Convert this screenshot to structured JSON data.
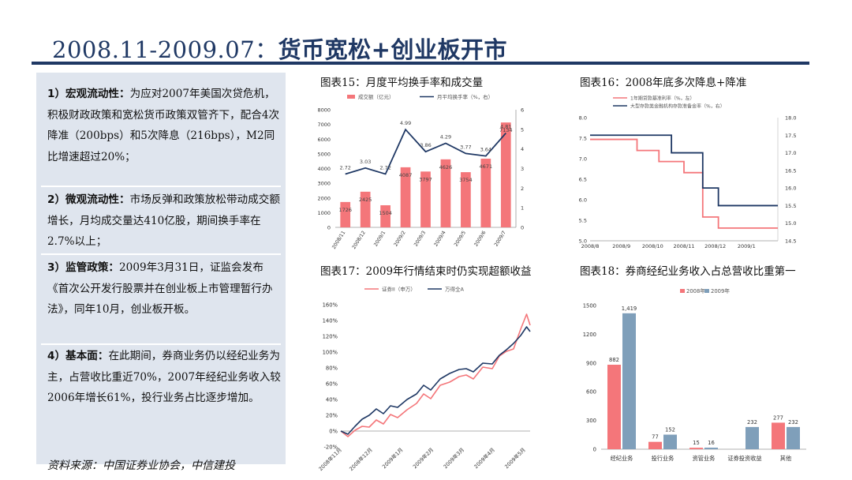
{
  "title": {
    "prefix": "2008.11-2009.07：",
    "suffix": "货币宽松+创业板开市"
  },
  "left": {
    "p1": {
      "head": "1）宏观流动性：",
      "body": "为应对2007年美国次贷危机，积极财政政策和宽松货币政策双管齐下，配合4次降准（200bps）和5次降息（216bps），M2同比增速超过20%；"
    },
    "p2": {
      "head": "2）微观流动性：",
      "body": "市场反弹和政策放松带动成交额增长，月均成交量达410亿股，期间换手率在2.7%以上；"
    },
    "p3": {
      "head": "3）监管政策：",
      "body": "2009年3月31日，证监会发布《首次公开发行股票并在创业板上市管理暂行办法》，同年10月，创业板开板。"
    },
    "p4": {
      "head": "4）基本面：",
      "body": "在此期间，券商业务仍以经纪业务为主，占营收比重近70%，2007年经纪业务收入较2006年增长61%，投行业务占比逐步增加。"
    }
  },
  "source": "资料来源：中国证券业协会，中信建投",
  "chart_data": [
    {
      "type": "bar",
      "title": "图表15：月度平均换手率和成交量",
      "categories": [
        "2008/11",
        "2008/12",
        "2009/1",
        "2009/2",
        "2009/3",
        "2009/4",
        "2009/5",
        "2009/6",
        "2009/7"
      ],
      "series": [
        {
          "name": "成交额（亿元）",
          "type": "bar",
          "axis": "left",
          "color": "#f4767a",
          "values": [
            1726,
            2425,
            1504,
            4087,
            3797,
            4626,
            3754,
            4671,
            7134
          ],
          "labels": [
            "1726",
            "2425",
            "1504",
            "4087",
            "3797",
            "4626",
            "3754",
            "4671",
            "7134"
          ]
        },
        {
          "name": "月平均换手率（%，右）",
          "type": "line",
          "axis": "right",
          "color": "#1f3864",
          "values": [
            2.72,
            3.03,
            2.72,
            4.99,
            3.86,
            4.29,
            3.77,
            3.64,
            4.81
          ],
          "labels": [
            "2.72",
            "3.03",
            "2.72",
            "4.99",
            "3.86",
            "4.29",
            "3.77",
            "3.64",
            "4.81"
          ]
        }
      ],
      "left_ticks": [
        "0",
        "1000",
        "2000",
        "3000",
        "4000",
        "5000",
        "6000",
        "7000",
        "8000"
      ],
      "right_ticks": [
        "0",
        "1",
        "2",
        "3",
        "4",
        "5",
        "6"
      ],
      "ylim": [
        0,
        8000
      ],
      "y2lim": [
        0,
        6
      ]
    },
    {
      "type": "line",
      "title": "图表16：2008年底多次降息+降准",
      "x_ticks": [
        "2008/8",
        "2008/9",
        "2008/10",
        "2008/11",
        "2008/12",
        "2009/1"
      ],
      "xlim": [
        0,
        6
      ],
      "series": [
        {
          "name": "1年期贷款基准利率（%，左）",
          "axis": "left",
          "color": "#f4767a",
          "points": [
            [
              0,
              7.47
            ],
            [
              1.5,
              7.47
            ],
            [
              1.5,
              7.2
            ],
            [
              2.2,
              7.2
            ],
            [
              2.2,
              6.93
            ],
            [
              3,
              6.93
            ],
            [
              3,
              6.66
            ],
            [
              3.6,
              6.66
            ],
            [
              3.6,
              5.58
            ],
            [
              4.1,
              5.58
            ],
            [
              4.1,
              5.31
            ],
            [
              6,
              5.31
            ]
          ]
        },
        {
          "name": "大型存款类金融机构存款准备金率（%，右）",
          "axis": "right",
          "color": "#1f3864",
          "points": [
            [
              0,
              17.5
            ],
            [
              2.6,
              17.5
            ],
            [
              2.6,
              17.0
            ],
            [
              3.6,
              17.0
            ],
            [
              3.6,
              16.0
            ],
            [
              4.1,
              16.0
            ],
            [
              4.1,
              15.5
            ],
            [
              6,
              15.5
            ]
          ]
        }
      ],
      "left_ticks": [
        "5.0",
        "5.5",
        "6.0",
        "6.5",
        "7.0",
        "7.5",
        "8.0"
      ],
      "right_ticks": [
        "14.5",
        "15.0",
        "15.5",
        "16.0",
        "16.5",
        "17.0",
        "17.5",
        "18.0"
      ],
      "ylim": [
        5.0,
        8.0
      ],
      "y2lim": [
        14.5,
        18.0
      ]
    },
    {
      "type": "line",
      "title": "图表17：2009年行情结束时仍实现超额收益",
      "x_ticks": [
        "2008年11月",
        "2008年12月",
        "2009年1月",
        "2009年2月",
        "2009年3月",
        "2009年4月",
        "2009年5月"
      ],
      "xlim": [
        0,
        8
      ],
      "y_ticks": [
        "-20%",
        "0%",
        "20%",
        "40%",
        "60%",
        "80%",
        "100%",
        "120%",
        "140%",
        "160%"
      ],
      "ylim": [
        -20,
        160
      ],
      "series": [
        {
          "name": "证券II（申万）",
          "color": "#f4767a",
          "points": [
            [
              0,
              0
            ],
            [
              0.3,
              -7
            ],
            [
              0.6,
              1
            ],
            [
              0.9,
              6
            ],
            [
              1.2,
              5
            ],
            [
              1.5,
              14
            ],
            [
              1.8,
              9
            ],
            [
              2.1,
              21
            ],
            [
              2.4,
              17
            ],
            [
              2.8,
              27
            ],
            [
              3.2,
              35
            ],
            [
              3.5,
              47
            ],
            [
              3.8,
              41
            ],
            [
              4.2,
              58
            ],
            [
              4.6,
              62
            ],
            [
              5.0,
              69
            ],
            [
              5.3,
              71
            ],
            [
              5.6,
              66
            ],
            [
              6.0,
              81
            ],
            [
              6.4,
              79
            ],
            [
              6.7,
              95
            ],
            [
              7.0,
              101
            ],
            [
              7.3,
              104
            ],
            [
              7.6,
              129
            ],
            [
              7.85,
              148
            ],
            [
              8.0,
              134
            ]
          ]
        },
        {
          "name": "万得全A",
          "color": "#1f3864",
          "points": [
            [
              0,
              0
            ],
            [
              0.3,
              -4
            ],
            [
              0.6,
              6
            ],
            [
              0.9,
              15
            ],
            [
              1.2,
              20
            ],
            [
              1.5,
              28
            ],
            [
              1.8,
              22
            ],
            [
              2.1,
              32
            ],
            [
              2.4,
              30
            ],
            [
              2.8,
              40
            ],
            [
              3.2,
              47
            ],
            [
              3.5,
              58
            ],
            [
              3.8,
              52
            ],
            [
              4.2,
              66
            ],
            [
              4.6,
              73
            ],
            [
              5.0,
              78
            ],
            [
              5.3,
              79
            ],
            [
              5.6,
              75
            ],
            [
              6.0,
              86
            ],
            [
              6.4,
              85
            ],
            [
              6.7,
              96
            ],
            [
              7.0,
              103
            ],
            [
              7.3,
              111
            ],
            [
              7.6,
              121
            ],
            [
              7.85,
              132
            ],
            [
              8.0,
              126
            ]
          ]
        }
      ]
    },
    {
      "type": "bar",
      "title": "图表18：券商经纪业务收入占总营收比重第一",
      "categories": [
        "经纪业务",
        "投行业务",
        "资管业务",
        "证券投资收益",
        "其他"
      ],
      "series": [
        {
          "name": "2008年",
          "color": "#f4767a",
          "values": [
            882,
            77,
            15,
            null,
            277
          ],
          "labels": [
            "882",
            "77",
            "15",
            "",
            "277"
          ]
        },
        {
          "name": "2009年",
          "color": "#7f9fba",
          "values": [
            1419,
            152,
            16,
            232,
            232
          ],
          "labels": [
            "1,419",
            "152",
            "16",
            "232",
            "232"
          ]
        }
      ],
      "y_ticks": [
        "0",
        "300",
        "600",
        "900",
        "1200",
        "1500"
      ],
      "ylim": [
        0,
        1500
      ]
    }
  ]
}
